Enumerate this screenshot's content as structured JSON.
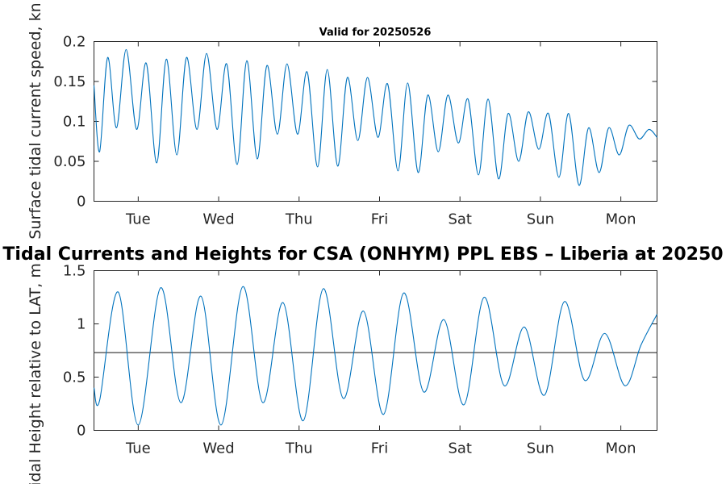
{
  "chart_data": [
    {
      "type": "line",
      "title": "Valid for 20250526",
      "ylabel": "Surface tidal current speed, kn",
      "xlabel": "",
      "xlim": [
        0.45,
        7.45
      ],
      "ylim": [
        0,
        0.2
      ],
      "yticks": [
        0,
        0.05,
        0.1,
        0.15,
        0.2
      ],
      "ytick_labels": [
        "0",
        "0.05",
        "0.1",
        "0.15",
        "0.2"
      ],
      "xticks": [
        1,
        2,
        3,
        4,
        5,
        6,
        7
      ],
      "xtick_labels": [
        "Tue",
        "Wed",
        "Thu",
        "Fri",
        "Sat",
        "Sun",
        "Mon"
      ],
      "grid": false,
      "series": [
        {
          "color": "#0072bd",
          "x": [
            0.45,
            0.52,
            0.62,
            0.73,
            0.85,
            0.98,
            1.1,
            1.23,
            1.35,
            1.48,
            1.6,
            1.73,
            1.85,
            1.98,
            2.1,
            2.23,
            2.35,
            2.48,
            2.6,
            2.73,
            2.85,
            2.98,
            3.1,
            3.23,
            3.35,
            3.48,
            3.6,
            3.73,
            3.85,
            3.98,
            4.1,
            4.23,
            4.35,
            4.48,
            4.6,
            4.73,
            4.85,
            4.98,
            5.1,
            5.23,
            5.35,
            5.48,
            5.6,
            5.73,
            5.85,
            5.98,
            6.1,
            6.23,
            6.35,
            6.48,
            6.6,
            6.73,
            6.85,
            6.98,
            7.1,
            7.23,
            7.35,
            7.45
          ],
          "y": [
            0.145,
            0.062,
            0.18,
            0.092,
            0.19,
            0.09,
            0.173,
            0.048,
            0.178,
            0.058,
            0.18,
            0.09,
            0.185,
            0.09,
            0.172,
            0.046,
            0.176,
            0.053,
            0.17,
            0.084,
            0.172,
            0.084,
            0.162,
            0.043,
            0.165,
            0.044,
            0.155,
            0.076,
            0.155,
            0.08,
            0.147,
            0.038,
            0.148,
            0.036,
            0.133,
            0.062,
            0.133,
            0.073,
            0.128,
            0.033,
            0.128,
            0.028,
            0.11,
            0.05,
            0.112,
            0.065,
            0.11,
            0.03,
            0.11,
            0.02,
            0.092,
            0.036,
            0.092,
            0.058,
            0.095,
            0.078,
            0.09,
            0.08
          ]
        }
      ]
    },
    {
      "type": "line",
      "title": "Tidal Currents and Heights for CSA (ONHYM) PPL EBS  – Liberia at 20250",
      "ylabel": "Tidal Height relative to LAT, m",
      "xlabel": "",
      "xlim": [
        0.45,
        7.45
      ],
      "ylim": [
        0,
        1.5
      ],
      "yticks": [
        0,
        0.5,
        1,
        1.5
      ],
      "ytick_labels": [
        "0",
        "0.5",
        "1",
        "1.5"
      ],
      "xticks": [
        1,
        2,
        3,
        4,
        5,
        6,
        7
      ],
      "xtick_labels": [
        "Tue",
        "Wed",
        "Thu",
        "Fri",
        "Sat",
        "Sun",
        "Mon"
      ],
      "reference_line": 0.73,
      "grid": false,
      "series": [
        {
          "color": "#0072bd",
          "x": [
            0.45,
            0.52,
            0.75,
            1.0,
            1.28,
            1.53,
            1.78,
            2.03,
            2.3,
            2.55,
            2.8,
            3.05,
            3.3,
            3.55,
            3.8,
            4.05,
            4.3,
            4.55,
            4.8,
            5.05,
            5.3,
            5.55,
            5.8,
            6.05,
            6.3,
            6.55,
            6.8,
            7.05,
            7.25,
            7.45
          ],
          "y": [
            0.4,
            0.28,
            1.3,
            0.05,
            1.34,
            0.26,
            1.26,
            0.05,
            1.35,
            0.26,
            1.2,
            0.09,
            1.33,
            0.3,
            1.12,
            0.15,
            1.29,
            0.36,
            1.04,
            0.24,
            1.25,
            0.42,
            0.97,
            0.33,
            1.21,
            0.47,
            0.91,
            0.42,
            0.8,
            1.09
          ]
        }
      ]
    }
  ]
}
